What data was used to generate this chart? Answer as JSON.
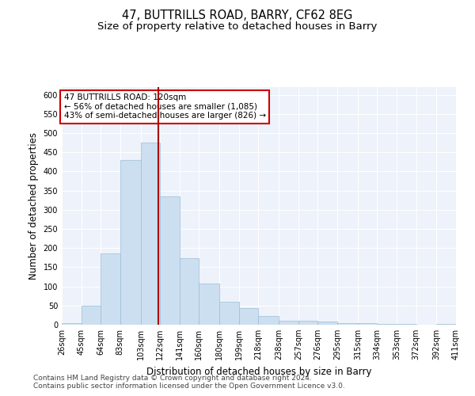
{
  "title": "47, BUTTRILLS ROAD, BARRY, CF62 8EG",
  "subtitle": "Size of property relative to detached houses in Barry",
  "xlabel": "Distribution of detached houses by size in Barry",
  "ylabel": "Number of detached properties",
  "footnote1": "Contains HM Land Registry data © Crown copyright and database right 2024.",
  "footnote2": "Contains public sector information licensed under the Open Government Licence v3.0.",
  "annotation_title": "47 BUTTRILLS ROAD: 120sqm",
  "annotation_line1": "← 56% of detached houses are smaller (1,085)",
  "annotation_line2": "43% of semi-detached houses are larger (826) →",
  "property_size": 120,
  "bar_color": "#ccdff0",
  "bar_edge_color": "#9bbdd6",
  "marker_color": "#aa0000",
  "background_color": "#eef2fa",
  "annotation_box_color": "#ffffff",
  "annotation_box_edge": "#cc0000",
  "bins": [
    26,
    45,
    64,
    83,
    103,
    122,
    141,
    160,
    180,
    199,
    218,
    238,
    257,
    276,
    295,
    315,
    334,
    353,
    372,
    392,
    411
  ],
  "counts": [
    5,
    50,
    185,
    430,
    475,
    335,
    173,
    107,
    60,
    44,
    22,
    10,
    10,
    8,
    5,
    4,
    2,
    2,
    1,
    2
  ],
  "ylim": [
    0,
    620
  ],
  "xlim": [
    26,
    411
  ],
  "yticks": [
    0,
    50,
    100,
    150,
    200,
    250,
    300,
    350,
    400,
    450,
    500,
    550,
    600
  ],
  "title_fontsize": 10.5,
  "subtitle_fontsize": 9.5,
  "axis_label_fontsize": 8.5,
  "tick_fontsize": 7,
  "footnote_fontsize": 6.5,
  "annotation_fontsize": 7.5
}
